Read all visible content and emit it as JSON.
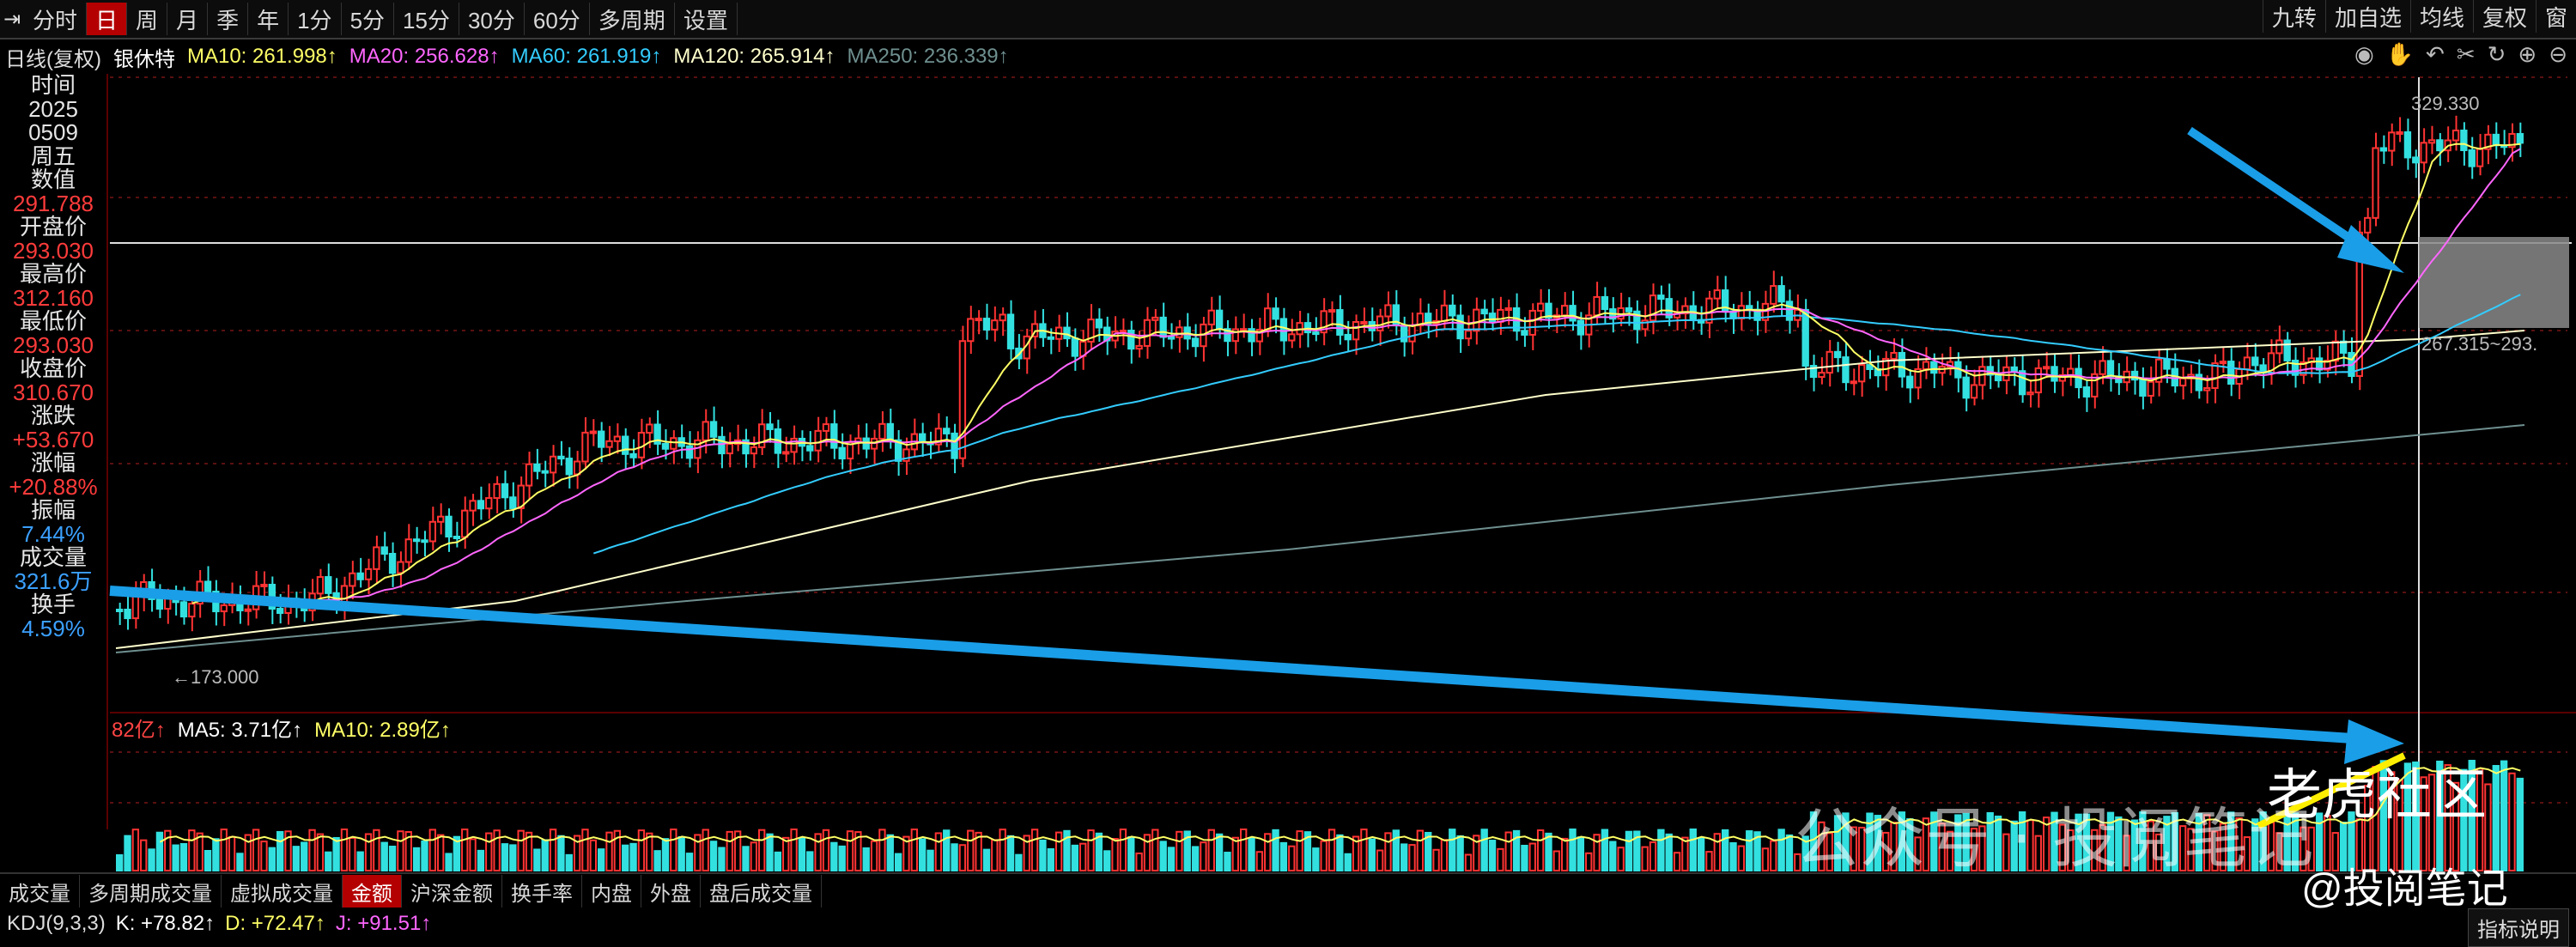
{
  "period_tabs": [
    "分时",
    "日",
    "周",
    "月",
    "季",
    "年",
    "1分",
    "5分",
    "15分",
    "30分",
    "60分",
    "多周期",
    "设置"
  ],
  "active_period": "日",
  "top_right_buttons": [
    "九转",
    "加自选",
    "均线",
    "复权",
    "窗"
  ],
  "ma_line": {
    "chart_type": "日线(复权)",
    "stock": "银休特",
    "items": [
      {
        "label": "MA10: 261.998↑",
        "color": "#ffff66"
      },
      {
        "label": "MA20: 256.628↑",
        "color": "#ff66ff"
      },
      {
        "label": "MA60: 261.919↑",
        "color": "#33ccff"
      },
      {
        "label": "MA120: 265.914↑",
        "color": "#ffffcc"
      },
      {
        "label": "MA250: 236.339↑",
        "color": "#6f8f8f"
      }
    ]
  },
  "sidebar": [
    {
      "text": "时间",
      "kind": "lbl"
    },
    {
      "text": "2025",
      "kind": "lbl"
    },
    {
      "text": "0509",
      "kind": "lbl"
    },
    {
      "text": "周五",
      "kind": "lbl"
    },
    {
      "text": "数值",
      "kind": "lbl"
    },
    {
      "text": "291.788",
      "kind": "red"
    },
    {
      "text": "开盘价",
      "kind": "lbl"
    },
    {
      "text": "293.030",
      "kind": "red"
    },
    {
      "text": "最高价",
      "kind": "lbl"
    },
    {
      "text": "312.160",
      "kind": "red"
    },
    {
      "text": "最低价",
      "kind": "lbl"
    },
    {
      "text": "293.030",
      "kind": "red"
    },
    {
      "text": "收盘价",
      "kind": "lbl"
    },
    {
      "text": "310.670",
      "kind": "red"
    },
    {
      "text": "涨跌",
      "kind": "lbl"
    },
    {
      "text": "+53.670",
      "kind": "red"
    },
    {
      "text": "涨幅",
      "kind": "lbl"
    },
    {
      "text": "+20.88%",
      "kind": "red"
    },
    {
      "text": "振幅",
      "kind": "lbl"
    },
    {
      "text": "7.44%",
      "kind": "blue"
    },
    {
      "text": "成交量",
      "kind": "lbl"
    },
    {
      "text": "321.6万",
      "kind": "blue"
    },
    {
      "text": "换手",
      "kind": "lbl"
    },
    {
      "text": "4.59%",
      "kind": "blue"
    }
  ],
  "price_annotations": {
    "high_label": "329.330",
    "low_label": "←173.000",
    "range_label": "267.315~293."
  },
  "volume_line": [
    {
      "label": "82亿↑",
      "color": "#ff4444"
    },
    {
      "label": "MA5: 3.71亿↑",
      "color": "#ffffff"
    },
    {
      "label": "MA10: 2.89亿↑",
      "color": "#ffff66"
    }
  ],
  "bottom_tabs": [
    "成交量",
    "多周期成交量",
    "虚拟成交量",
    "金额",
    "沪深金额",
    "换手率",
    "内盘",
    "外盘",
    "盘后成交量"
  ],
  "active_bottom_tab": "金额",
  "kdj": [
    {
      "label": "KDJ(9,3,3)",
      "color": "#ddd"
    },
    {
      "label": "K: +78.82↑",
      "color": "#ffffff"
    },
    {
      "label": "D: +72.47↑",
      "color": "#ffff66"
    },
    {
      "label": "J: +91.51↑",
      "color": "#ff66ff"
    }
  ],
  "explain_button": "指标说明",
  "watermark": {
    "public_account": "公众号 · 投阅笔记",
    "tiger": "老虎社区",
    "signature": "@投阅笔记"
  },
  "colors": {
    "up": "#ff3333",
    "down": "#33e0e0",
    "ma10": "#ffff66",
    "ma20": "#ff66ff",
    "ma60": "#33ccff",
    "ma120": "#ffffcc",
    "ma250": "#6f8f8f",
    "arrow": "#1a9ee8"
  }
}
